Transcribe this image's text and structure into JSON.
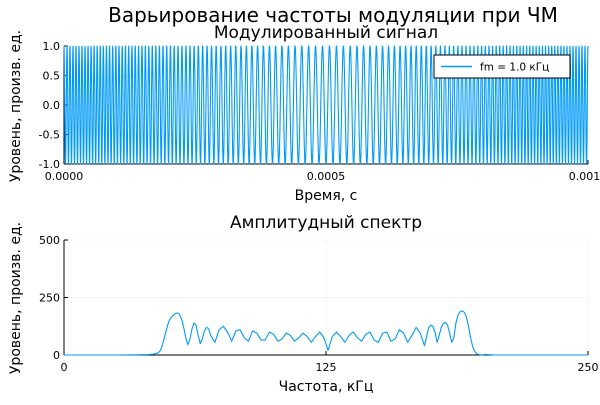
{
  "suptitle": "Варьирование частоты модуляции при ЧМ",
  "colors": {
    "series": "#009af9",
    "axis": "#000000",
    "background": "#ffffff"
  },
  "chart_data": [
    {
      "type": "line",
      "title": "Модулированный сигнал",
      "xlabel": "Время, с",
      "ylabel": "Уровень, произв. ед.",
      "xlim": [
        0,
        0.001
      ],
      "ylim": [
        -1.0,
        1.0
      ],
      "xticks": [
        0,
        0.0005,
        0.001
      ],
      "xtick_labels": [
        "0.0000",
        "0.0005",
        "0.0010"
      ],
      "yticks": [
        -1.0,
        -0.5,
        0.0,
        0.5,
        1.0
      ],
      "ytick_labels": [
        "-1.0",
        "-0.5",
        "0.0",
        "0.5",
        "1.0"
      ],
      "grid": true,
      "legend": {
        "position": "top-right",
        "entries": [
          "fm = 1.0 кГц"
        ]
      },
      "series": [
        {
          "name": "fm = 1.0 кГц",
          "signal": {
            "kind": "fm",
            "amplitude": 1.0,
            "carrier_freq_hz": 125000,
            "deviation_hz": 50000,
            "modulation_freq_hz": 1000,
            "t_start": 0,
            "t_end": 0.001
          }
        }
      ]
    },
    {
      "type": "line",
      "title": "Амплитудный спектр",
      "xlabel": "Частота, кГц",
      "ylabel": "Уровень, произв. ед.",
      "xlim": [
        0,
        250
      ],
      "ylim": [
        0,
        500
      ],
      "xticks": [
        0,
        125,
        250
      ],
      "xtick_labels": [
        "0",
        "125",
        "250"
      ],
      "yticks": [
        0,
        250,
        500
      ],
      "ytick_labels": [
        "0",
        "250",
        "500"
      ],
      "grid": true,
      "series": [
        {
          "x": [
            0,
            25,
            35,
            40,
            43,
            45,
            46,
            47,
            48,
            49,
            50,
            51,
            52,
            53,
            54,
            55,
            56,
            57,
            58,
            59,
            60,
            61,
            62,
            63,
            64,
            65,
            66,
            67,
            68,
            69,
            70,
            72,
            74,
            76,
            78,
            80,
            82,
            84,
            86,
            88,
            90,
            92,
            94,
            96,
            98,
            100,
            102,
            104,
            106,
            108,
            110,
            112,
            114,
            116,
            118,
            120,
            122,
            124,
            126,
            128,
            130,
            132,
            134,
            136,
            138,
            140,
            142,
            144,
            146,
            148,
            150,
            152,
            154,
            156,
            158,
            160,
            162,
            164,
            166,
            168,
            170,
            172,
            173,
            174,
            175,
            176,
            177,
            178,
            179,
            180,
            181,
            182,
            183,
            184,
            185,
            186,
            187,
            188,
            189,
            190,
            191,
            192,
            193,
            194,
            195,
            196,
            197,
            198,
            199,
            200,
            201,
            202,
            204,
            205,
            206,
            208,
            210,
            220,
            230,
            240,
            250
          ],
          "y": [
            0,
            0,
            1,
            2,
            4,
            10,
            20,
            45,
            80,
            115,
            145,
            162,
            172,
            180,
            183,
            178,
            160,
            125,
            80,
            45,
            65,
            110,
            140,
            130,
            85,
            50,
            70,
            105,
            120,
            115,
            85,
            55,
            110,
            125,
            100,
            60,
            105,
            110,
            75,
            60,
            105,
            95,
            65,
            65,
            100,
            90,
            60,
            70,
            95,
            85,
            60,
            75,
            95,
            80,
            55,
            80,
            100,
            75,
            20,
            80,
            100,
            80,
            55,
            85,
            100,
            75,
            60,
            90,
            100,
            65,
            55,
            95,
            100,
            60,
            70,
            110,
            95,
            55,
            85,
            120,
            95,
            40,
            80,
            120,
            130,
            125,
            100,
            55,
            85,
            120,
            138,
            142,
            130,
            95,
            55,
            75,
            140,
            175,
            188,
            192,
            185,
            165,
            125,
            75,
            35,
            15,
            5,
            2,
            1,
            1,
            3,
            2,
            1,
            0,
            0,
            0,
            0,
            0,
            0,
            0,
            0
          ]
        }
      ]
    }
  ]
}
